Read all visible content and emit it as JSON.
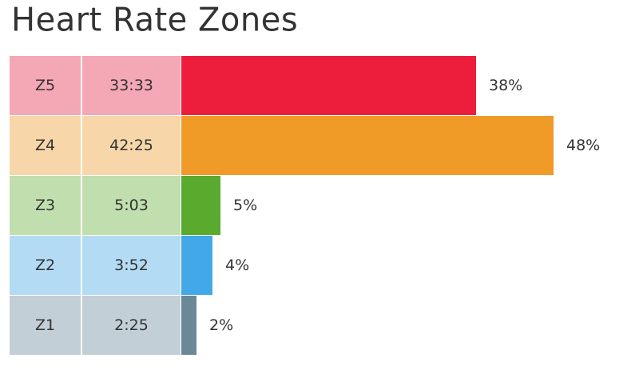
{
  "title": "Heart Rate Zones",
  "chart_data": {
    "type": "bar",
    "orientation": "horizontal",
    "title": "Heart Rate Zones",
    "categories": [
      "Z5",
      "Z4",
      "Z3",
      "Z2",
      "Z1"
    ],
    "times": [
      "33:33",
      "42:25",
      "5:03",
      "3:52",
      "2:25"
    ],
    "values": [
      38,
      48,
      5,
      4,
      2
    ],
    "labels": [
      "38%",
      "48%",
      "5%",
      "4%",
      "2%"
    ],
    "xlim": [
      0,
      48
    ],
    "bar_colors": [
      "#ed1e3c",
      "#f09a28",
      "#5aaa2d",
      "#42a8e8",
      "#6b8896"
    ],
    "cell_colors": [
      "#f4a7b4",
      "#f7d6a9",
      "#c1dfae",
      "#b3dbf3",
      "#c3cfd6"
    ]
  }
}
